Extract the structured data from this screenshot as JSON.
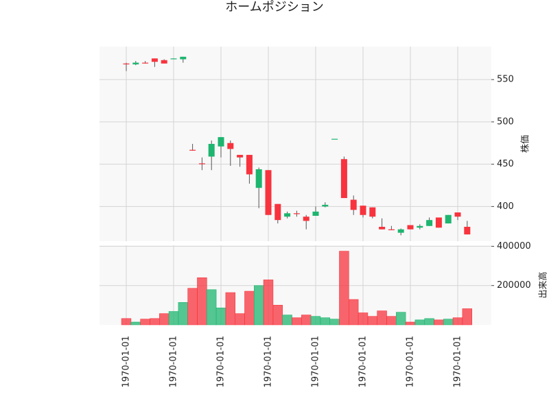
{
  "chart_data": {
    "type": "candlestick",
    "title": "ホームポジション",
    "categories": [
      "1970-01-01",
      null,
      null,
      null,
      null,
      "1970-01-01",
      null,
      null,
      null,
      null,
      "1970-01-01",
      null,
      null,
      null,
      null,
      "1970-01-01",
      null,
      null,
      null,
      null,
      "1970-01-01",
      null,
      null,
      null,
      null,
      "1970-01-01",
      null,
      null,
      null,
      null,
      "1970-01-01",
      null,
      null,
      null,
      null,
      "1970-01-01",
      null
    ],
    "open": [
      569,
      568,
      570,
      575,
      573,
      574,
      574,
      467,
      451,
      459,
      471,
      475,
      461,
      461,
      422,
      443,
      403,
      388,
      392,
      388,
      389,
      400,
      480,
      456,
      408,
      401,
      399,
      376,
      373,
      369,
      378,
      375,
      377,
      387,
      380,
      393,
      376
    ],
    "high": [
      570,
      572,
      572,
      575,
      574,
      575,
      577,
      474,
      458,
      478,
      482,
      478,
      461,
      461,
      446,
      443,
      403,
      394,
      395,
      390,
      400,
      405,
      480,
      459,
      413,
      401,
      399,
      386,
      377,
      374,
      378,
      379,
      387,
      387,
      390,
      393,
      383
    ],
    "low": [
      560,
      567,
      569,
      565,
      569,
      574,
      570,
      466,
      443,
      443,
      458,
      448,
      447,
      427,
      398,
      390,
      380,
      386,
      388,
      373,
      389,
      399,
      480,
      410,
      390,
      387,
      386,
      373,
      372,
      366,
      373,
      373,
      377,
      375,
      380,
      384,
      367
    ],
    "close": [
      568,
      570,
      569,
      571,
      569,
      575,
      577,
      466,
      450,
      474,
      482,
      468,
      458,
      438,
      444,
      390,
      384,
      392,
      391,
      383,
      394,
      402,
      480,
      410,
      396,
      390,
      388,
      373,
      372,
      373,
      373,
      377,
      384,
      375,
      390,
      388,
      367
    ],
    "volume": [
      32000,
      14000,
      29000,
      32000,
      57000,
      68000,
      114000,
      186000,
      240000,
      179000,
      86000,
      164000,
      57000,
      171000,
      200000,
      229000,
      100000,
      50000,
      36000,
      50000,
      43000,
      36000,
      29000,
      375000,
      129000,
      61000,
      43000,
      71000,
      43000,
      64000,
      14000,
      25000,
      32000,
      25000,
      29000,
      36000,
      82000
    ],
    "up_color": "#1db56f",
    "down_color": "#f8333d",
    "ylabel": "株価",
    "volume_label": "出来高",
    "ylim": [
      359,
      589
    ],
    "yticks": [
      400,
      450,
      500,
      550
    ],
    "volume_ylim": [
      0,
      405000
    ],
    "volume_yticks": [
      200000,
      400000
    ],
    "grid": true
  }
}
